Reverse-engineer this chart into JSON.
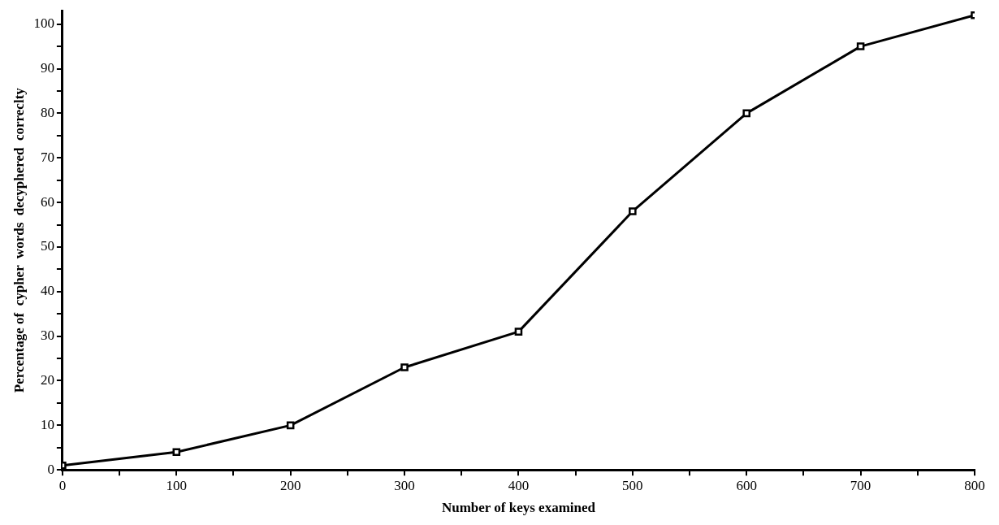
{
  "chart_data": {
    "type": "line",
    "xlabel": "Number of keys examined",
    "ylabel": "Percentage of  cypher  words  decyphered  correclty",
    "x": [
      0,
      100,
      200,
      300,
      400,
      500,
      600,
      700,
      800
    ],
    "series": [
      {
        "color": "#000000",
        "values": [
          1,
          4,
          10,
          23,
          31,
          58,
          80,
          95,
          102
        ]
      }
    ],
    "xlim": [
      0,
      800
    ],
    "xticks": [
      0,
      {
        "value": 50,
        "label": null
      },
      100,
      {
        "value": 150,
        "label": null
      },
      200,
      {
        "value": 250,
        "label": null
      },
      300,
      {
        "value": 350,
        "label": null
      },
      400,
      {
        "value": 450,
        "label": null
      },
      500,
      {
        "value": 550,
        "label": null
      },
      600,
      {
        "value": 650,
        "label": null
      },
      700,
      {
        "value": 750,
        "label": null
      },
      800
    ],
    "ylim": [
      0,
      103
    ],
    "yticks": [
      0,
      {
        "value": 5,
        "label": null
      },
      10,
      {
        "value": 15,
        "label": null
      },
      20,
      {
        "value": 25,
        "label": null
      },
      30,
      {
        "value": 35,
        "label": null
      },
      40,
      {
        "value": 45,
        "label": null
      },
      50,
      {
        "value": 55,
        "label": null
      },
      60,
      {
        "value": 65,
        "label": null
      },
      70,
      {
        "value": 75,
        "label": null
      },
      80,
      {
        "value": 85,
        "label": null
      },
      90,
      {
        "value": 95,
        "label": null
      },
      100
    ],
    "marker": "square",
    "line_style": "solid",
    "grid": false,
    "legend": false
  }
}
